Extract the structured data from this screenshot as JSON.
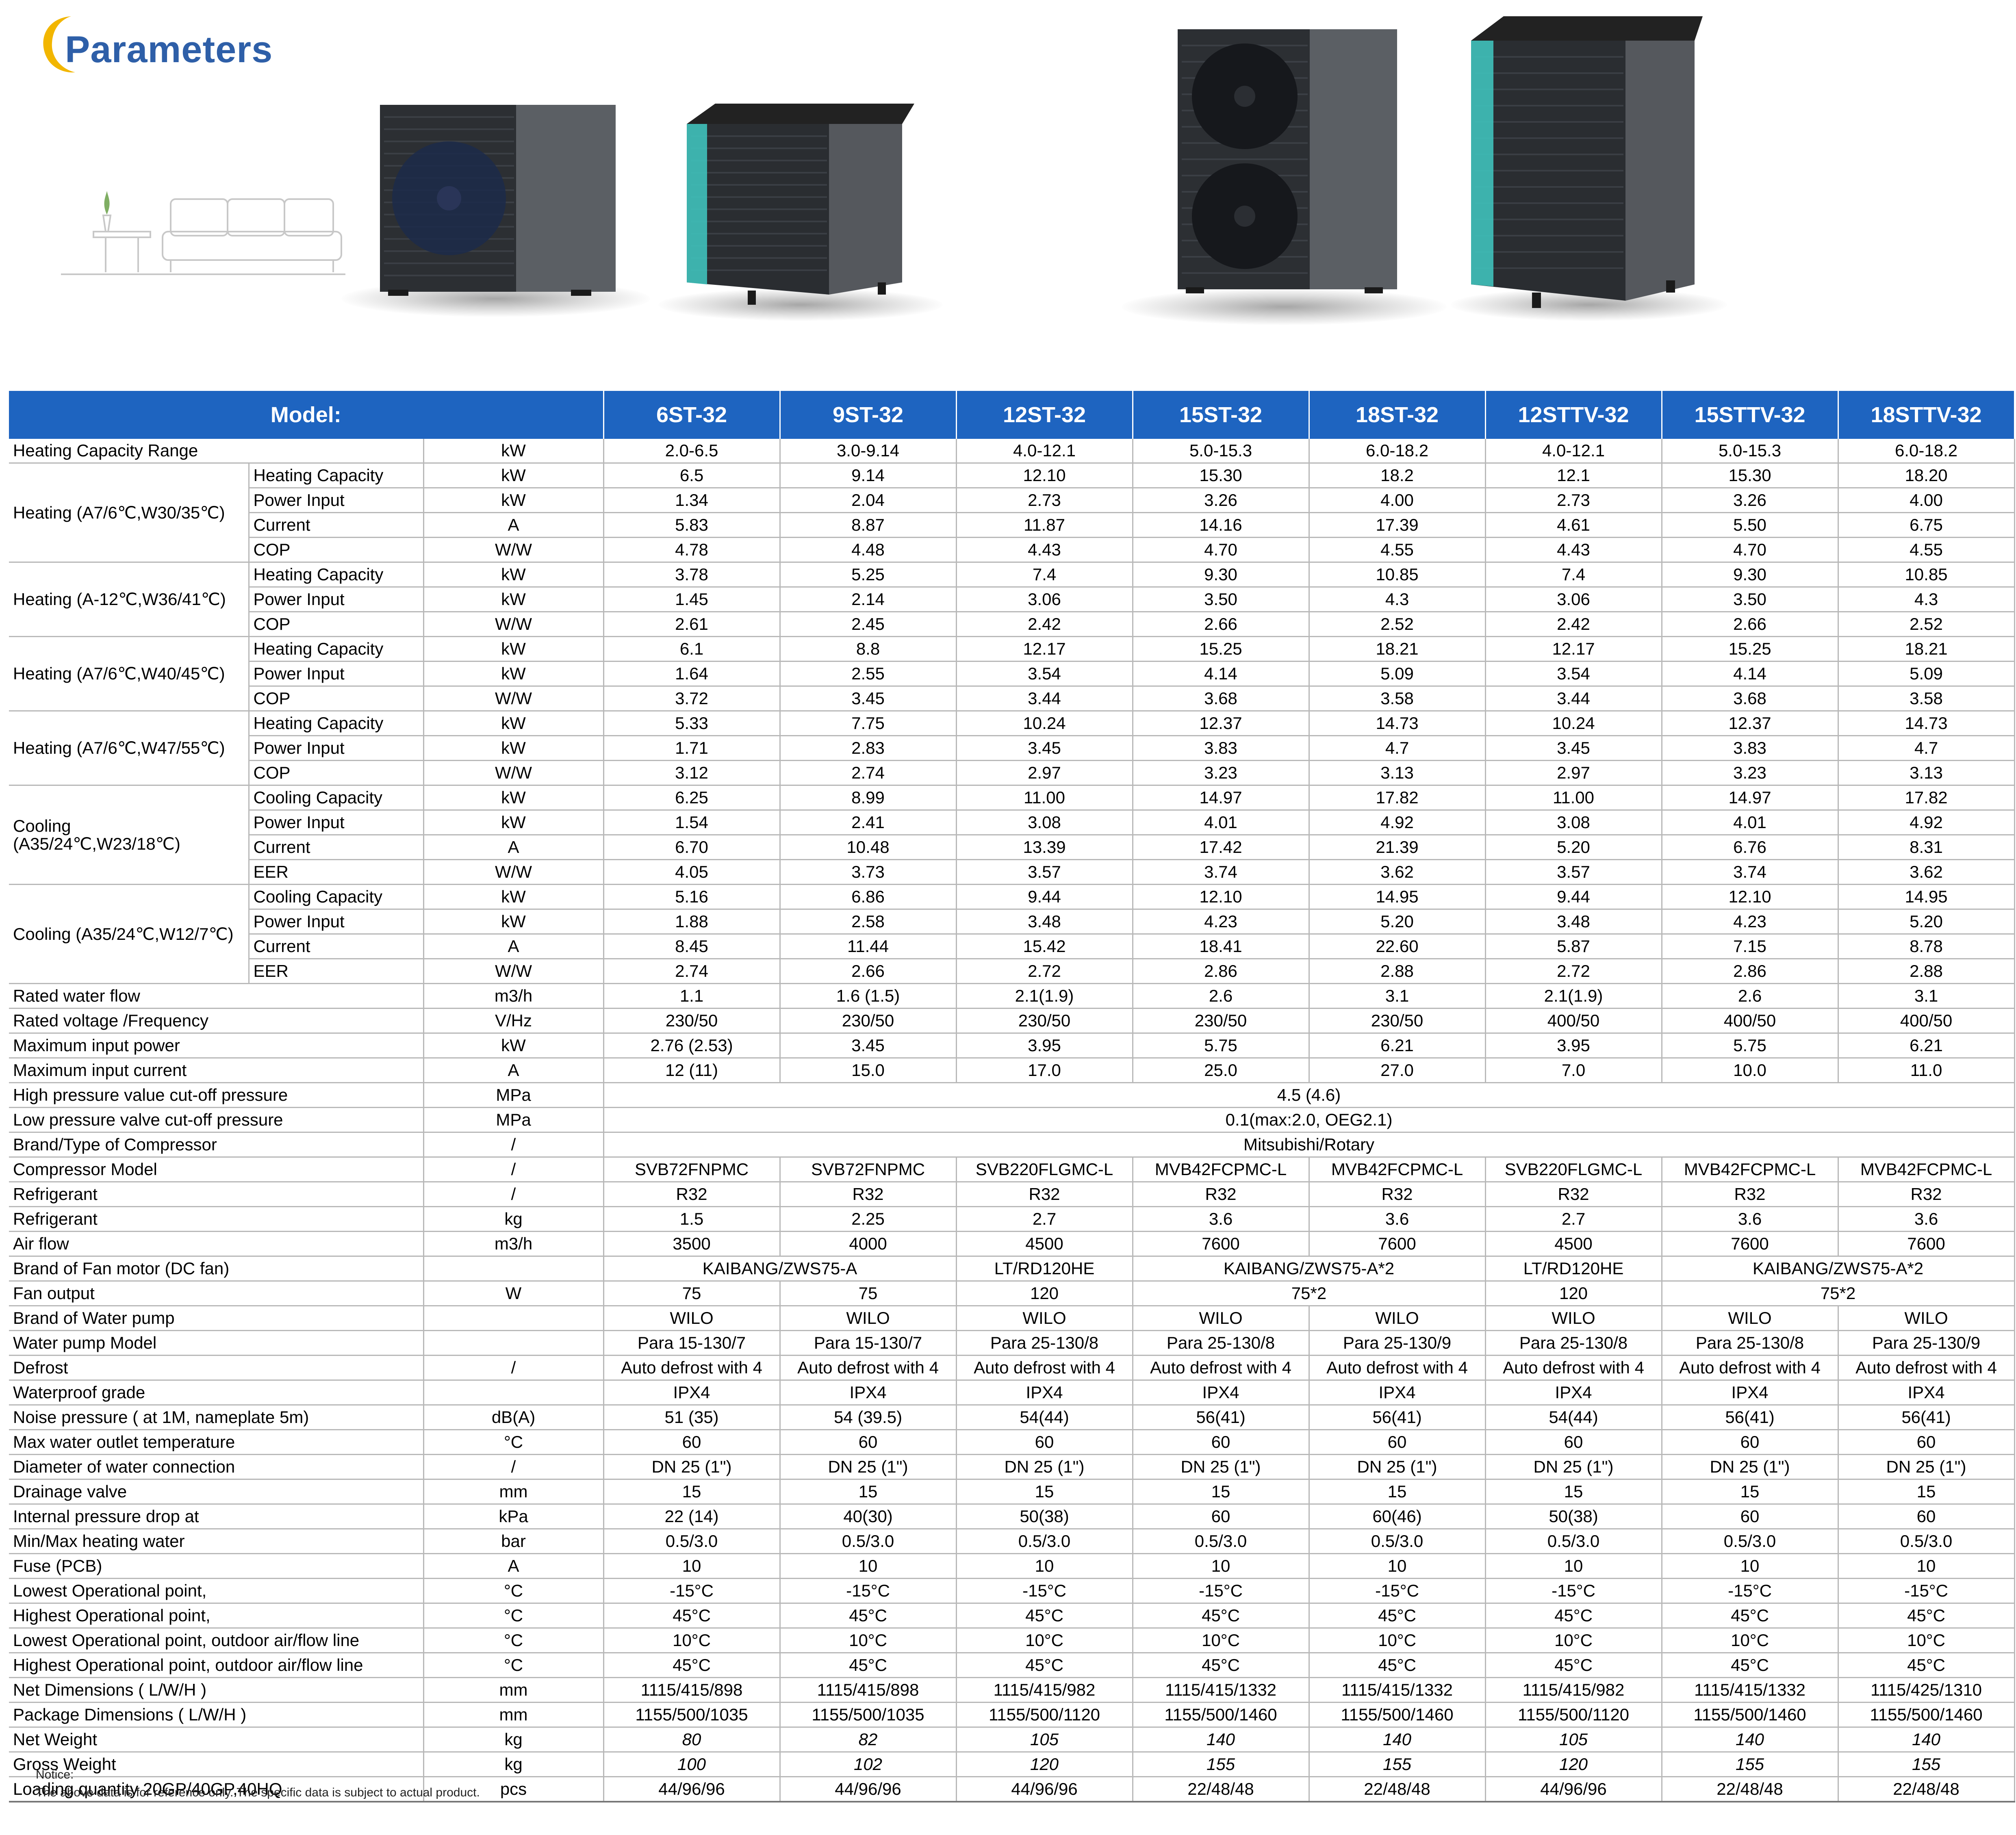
{
  "header": {
    "brand_title": "Parameters"
  },
  "colors": {
    "accent": "#1e64c0",
    "brand": "#2e5fa8",
    "logo_crescent": "#f2b600"
  },
  "table": {
    "model_label": "Model:",
    "models": [
      "6ST-32",
      "9ST-32",
      "12ST-32",
      "15ST-32",
      "18ST-32",
      "12STTV-32",
      "15STTV-32",
      "18STTV-32"
    ],
    "heating_capacity_range": {
      "label": "Heating Capacity Range",
      "unit": "kW",
      "values": [
        "2.0-6.5",
        "3.0-9.14",
        "4.0-12.1",
        "5.0-15.3",
        "6.0-18.2",
        "4.0-12.1",
        "5.0-15.3",
        "6.0-18.2"
      ]
    },
    "groups": [
      {
        "title": "Heating   (A7/6℃,W30/35℃)",
        "rows": [
          {
            "label": "Heating Capacity",
            "unit": "kW",
            "values": [
              "6.5",
              "9.14",
              "12.10",
              "15.30",
              "18.2",
              "12.1",
              "15.30",
              "18.20"
            ]
          },
          {
            "label": "Power Input",
            "unit": "kW",
            "values": [
              "1.34",
              "2.04",
              "2.73",
              "3.26",
              "4.00",
              "2.73",
              "3.26",
              "4.00"
            ]
          },
          {
            "label": "Current",
            "unit": "A",
            "values": [
              "5.83",
              "8.87",
              "11.87",
              "14.16",
              "17.39",
              "4.61",
              "5.50",
              "6.75"
            ]
          },
          {
            "label": "COP",
            "unit": "W/W",
            "values": [
              "4.78",
              "4.48",
              "4.43",
              "4.70",
              "4.55",
              "4.43",
              "4.70",
              "4.55"
            ]
          }
        ]
      },
      {
        "title": "Heating   (A-12℃,W36/41℃)",
        "rows": [
          {
            "label": "Heating Capacity",
            "unit": "kW",
            "values": [
              "3.78",
              "5.25",
              "7.4",
              "9.30",
              "10.85",
              "7.4",
              "9.30",
              "10.85"
            ]
          },
          {
            "label": "Power Input",
            "unit": "kW",
            "values": [
              "1.45",
              "2.14",
              "3.06",
              "3.50",
              "4.3",
              "3.06",
              "3.50",
              "4.3"
            ]
          },
          {
            "label": "COP",
            "unit": "W/W",
            "values": [
              "2.61",
              "2.45",
              "2.42",
              "2.66",
              "2.52",
              "2.42",
              "2.66",
              "2.52"
            ]
          }
        ]
      },
      {
        "title": "Heating   (A7/6℃,W40/45℃)",
        "rows": [
          {
            "label": "Heating Capacity",
            "unit": "kW",
            "values": [
              "6.1",
              "8.8",
              "12.17",
              "15.25",
              "18.21",
              "12.17",
              "15.25",
              "18.21"
            ]
          },
          {
            "label": "Power Input",
            "unit": "kW",
            "values": [
              "1.64",
              "2.55",
              "3.54",
              "4.14",
              "5.09",
              "3.54",
              "4.14",
              "5.09"
            ]
          },
          {
            "label": "COP",
            "unit": "W/W",
            "values": [
              "3.72",
              "3.45",
              "3.44",
              "3.68",
              "3.58",
              "3.44",
              "3.68",
              "3.58"
            ]
          }
        ]
      },
      {
        "title": "Heating   (A7/6℃,W47/55℃)",
        "rows": [
          {
            "label": "Heating Capacity",
            "unit": "kW",
            "values": [
              "5.33",
              "7.75",
              "10.24",
              "12.37",
              "14.73",
              "10.24",
              "12.37",
              "14.73"
            ]
          },
          {
            "label": "Power Input",
            "unit": "kW",
            "values": [
              "1.71",
              "2.83",
              "3.45",
              "3.83",
              "4.7",
              "3.45",
              "3.83",
              "4.7"
            ]
          },
          {
            "label": "COP",
            "unit": "W/W",
            "values": [
              "3.12",
              "2.74",
              "2.97",
              "3.23",
              "3.13",
              "2.97",
              "3.23",
              "3.13"
            ]
          }
        ]
      },
      {
        "title": "Cooling",
        "title2": "(A35/24℃,W23/18℃)",
        "rows": [
          {
            "label": "Cooling Capacity",
            "unit": "kW",
            "values": [
              "6.25",
              "8.99",
              "11.00",
              "14.97",
              "17.82",
              "11.00",
              "14.97",
              "17.82"
            ]
          },
          {
            "label": "Power Input",
            "unit": "kW",
            "values": [
              "1.54",
              "2.41",
              "3.08",
              "4.01",
              "4.92",
              "3.08",
              "4.01",
              "4.92"
            ]
          },
          {
            "label": "Current",
            "unit": "A",
            "values": [
              "6.70",
              "10.48",
              "13.39",
              "17.42",
              "21.39",
              "5.20",
              "6.76",
              "8.31"
            ]
          },
          {
            "label": "EER",
            "unit": "W/W",
            "values": [
              "4.05",
              "3.73",
              "3.57",
              "3.74",
              "3.62",
              "3.57",
              "3.74",
              "3.62"
            ]
          }
        ]
      },
      {
        "title": "Cooling   (A35/24℃,W12/7℃)",
        "rows": [
          {
            "label": "Cooling Capacity",
            "unit": "kW",
            "values": [
              "5.16",
              "6.86",
              "9.44",
              "12.10",
              "14.95",
              "9.44",
              "12.10",
              "14.95"
            ]
          },
          {
            "label": "Power Input",
            "unit": "kW",
            "values": [
              "1.88",
              "2.58",
              "3.48",
              "4.23",
              "5.20",
              "3.48",
              "4.23",
              "5.20"
            ]
          },
          {
            "label": "Current",
            "unit": "A",
            "values": [
              "8.45",
              "11.44",
              "15.42",
              "18.41",
              "22.60",
              "5.87",
              "7.15",
              "8.78"
            ]
          },
          {
            "label": "EER",
            "unit": "W/W",
            "values": [
              "2.74",
              "2.66",
              "2.72",
              "2.86",
              "2.88",
              "2.72",
              "2.86",
              "2.88"
            ]
          }
        ]
      }
    ],
    "rows_a": [
      {
        "label": "Rated water flow",
        "unit": "m3/h",
        "values": [
          "1.1",
          "1.6 (1.5)",
          "2.1(1.9)",
          "2.6",
          "3.1",
          "2.1(1.9)",
          "2.6",
          "3.1"
        ]
      },
      {
        "label": "Rated voltage /Frequency",
        "unit": "V/Hz",
        "values": [
          "230/50",
          "230/50",
          "230/50",
          "230/50",
          "230/50",
          "400/50",
          "400/50",
          "400/50"
        ]
      },
      {
        "label": "Maximum input power",
        "unit": "kW",
        "values": [
          "2.76 (2.53)",
          "3.45",
          "3.95",
          "5.75",
          "6.21",
          "3.95",
          "5.75",
          "6.21"
        ]
      },
      {
        "label": "Maximum input current",
        "unit": "A",
        "values": [
          "12 (11)",
          "15.0",
          "17.0",
          "25.0",
          "27.0",
          "7.0",
          "10.0",
          "11.0"
        ]
      }
    ],
    "span_rows": [
      {
        "label": "High pressure value cut-off pressure",
        "unit": "MPa",
        "value": "4.5 (4.6)"
      },
      {
        "label": "Low pressure valve cut-off pressure",
        "unit": "MPa",
        "value": "0.1(max:2.0,  OEG2.1)"
      },
      {
        "label": "Brand/Type of Compressor",
        "unit": "/",
        "value": "Mitsubishi/Rotary"
      }
    ],
    "rows_b": [
      {
        "label": "Compressor Model",
        "unit": "/",
        "values": [
          "SVB72FNPMC",
          "SVB72FNPMC",
          "SVB220FLGMC-L",
          "MVB42FCPMC-L",
          "MVB42FCPMC-L",
          "SVB220FLGMC-L",
          "MVB42FCPMC-L",
          "MVB42FCPMC-L"
        ]
      },
      {
        "label": "Refrigerant",
        "unit": "/",
        "values": [
          "R32",
          "R32",
          "R32",
          "R32",
          "R32",
          "R32",
          "R32",
          "R32"
        ]
      },
      {
        "label": "Refrigerant",
        "unit": "kg",
        "values": [
          "1.5",
          "2.25",
          "2.7",
          "3.6",
          "3.6",
          "2.7",
          "3.6",
          "3.6"
        ]
      },
      {
        "label": "Air flow",
        "unit": "m3/h",
        "values": [
          "3500",
          "4000",
          "4500",
          "7600",
          "7600",
          "4500",
          "7600",
          "7600"
        ]
      }
    ],
    "fan_brand": {
      "label": "Brand of Fan motor (DC fan)",
      "unit": "",
      "cells": [
        "KAIBANG/ZWS75-A",
        "LT/RD120HE",
        "KAIBANG/ZWS75-A*2",
        "LT/RD120HE",
        "KAIBANG/ZWS75-A*2"
      ]
    },
    "fan_output": {
      "label": "Fan output",
      "unit": "W",
      "cells": [
        "75",
        "75",
        "120",
        "75*2",
        "120",
        "75*2"
      ]
    },
    "rows_c": [
      {
        "label": "Brand of Water pump",
        "unit": "",
        "values": [
          "WILO",
          "WILO",
          "WILO",
          "WILO",
          "WILO",
          "WILO",
          "WILO",
          "WILO"
        ]
      },
      {
        "label": "Water pump Model",
        "unit": "",
        "values": [
          "Para 15-130/7",
          "Para 15-130/7",
          "Para 25-130/8",
          "Para 25-130/8",
          "Para 25-130/9",
          "Para 25-130/8",
          "Para 25-130/8",
          "Para 25-130/9"
        ]
      },
      {
        "label": "Defrost",
        "unit": "/",
        "values": [
          "Auto defrost with 4",
          "Auto defrost with 4",
          "Auto defrost with 4",
          "Auto defrost with 4",
          "Auto defrost with 4",
          "Auto defrost with 4",
          "Auto defrost with 4",
          "Auto defrost with 4"
        ]
      },
      {
        "label": "Waterproof grade",
        "unit": "",
        "values": [
          "IPX4",
          "IPX4",
          "IPX4",
          "IPX4",
          "IPX4",
          "IPX4",
          "IPX4",
          "IPX4"
        ]
      },
      {
        "label": "Noise pressure ( at 1M, nameplate 5m)",
        "unit": "dB(A)",
        "values": [
          "51 (35)",
          "54 (39.5)",
          "54(44)",
          "56(41)",
          "56(41)",
          "54(44)",
          "56(41)",
          "56(41)"
        ]
      },
      {
        "label": "Max water outlet temperature",
        "unit": "°C",
        "values": [
          "60",
          "60",
          "60",
          "60",
          "60",
          "60",
          "60",
          "60"
        ]
      },
      {
        "label": "Diameter of water connection",
        "unit": "/",
        "values": [
          "DN 25 (1\")",
          "DN 25 (1\")",
          "DN 25 (1\")",
          "DN 25 (1\")",
          "DN 25 (1\")",
          "DN 25 (1\")",
          "DN 25 (1\")",
          "DN 25 (1\")"
        ]
      },
      {
        "label": "Drainage valve",
        "unit": "mm",
        "values": [
          "15",
          "15",
          "15",
          "15",
          "15",
          "15",
          "15",
          "15"
        ]
      },
      {
        "label": "Internal pressure drop at",
        "unit": "kPa",
        "values": [
          "22 (14)",
          "40(30)",
          "50(38)",
          "60",
          "60(46)",
          "50(38)",
          "60",
          "60"
        ]
      },
      {
        "label": "Min/Max heating water",
        "unit": "bar",
        "values": [
          "0.5/3.0",
          "0.5/3.0",
          "0.5/3.0",
          "0.5/3.0",
          "0.5/3.0",
          "0.5/3.0",
          "0.5/3.0",
          "0.5/3.0"
        ]
      },
      {
        "label": "Fuse (PCB)",
        "unit": "A",
        "values": [
          "10",
          "10",
          "10",
          "10",
          "10",
          "10",
          "10",
          "10"
        ]
      },
      {
        "label": "Lowest Operational point,",
        "unit": "°C",
        "values": [
          "-15°C",
          "-15°C",
          "-15°C",
          "-15°C",
          "-15°C",
          "-15°C",
          "-15°C",
          "-15°C"
        ]
      },
      {
        "label": "Highest Operational point,",
        "unit": "°C",
        "values": [
          "45°C",
          "45°C",
          "45°C",
          "45°C",
          "45°C",
          "45°C",
          "45°C",
          "45°C"
        ]
      },
      {
        "label": "Lowest Operational point, outdoor air/flow line",
        "unit": "°C",
        "values": [
          "10°C",
          "10°C",
          "10°C",
          "10°C",
          "10°C",
          "10°C",
          "10°C",
          "10°C"
        ]
      },
      {
        "label": "Highest Operational point, outdoor air/flow line",
        "unit": "°C",
        "values": [
          "45°C",
          "45°C",
          "45°C",
          "45°C",
          "45°C",
          "45°C",
          "45°C",
          "45°C"
        ]
      },
      {
        "label": "Net Dimensions ( L/W/H )",
        "unit": "mm",
        "values": [
          "1115/415/898",
          "1115/415/898",
          "1115/415/982",
          "1115/415/1332",
          "1115/415/1332",
          "1115/415/982",
          "1115/415/1332",
          "1115/425/1310"
        ]
      },
      {
        "label": "Package Dimensions ( L/W/H )",
        "unit": "mm",
        "values": [
          "1155/500/1035",
          "1155/500/1035",
          "1155/500/1120",
          "1155/500/1460",
          "1155/500/1460",
          "1155/500/1120",
          "1155/500/1460",
          "1155/500/1460"
        ]
      },
      {
        "label": "Net Weight",
        "unit": "kg",
        "italic": true,
        "values": [
          "80",
          "82",
          "105",
          "140",
          "140",
          "105",
          "140",
          "140"
        ]
      },
      {
        "label": "Gross Weight",
        "unit": "kg",
        "italic": true,
        "values": [
          "100",
          "102",
          "120",
          "155",
          "155",
          "120",
          "155",
          "155"
        ]
      },
      {
        "label": "Loading quantity 20GP/40GP,40HQ",
        "unit": "pcs",
        "values": [
          "44/96/96",
          "44/96/96",
          "44/96/96",
          "22/48/48",
          "22/48/48",
          "44/96/96",
          "22/48/48",
          "22/48/48"
        ]
      }
    ]
  },
  "notice": {
    "title": "Notice:",
    "text": "The above data is for reference only. The specific data is subject to actual product."
  }
}
